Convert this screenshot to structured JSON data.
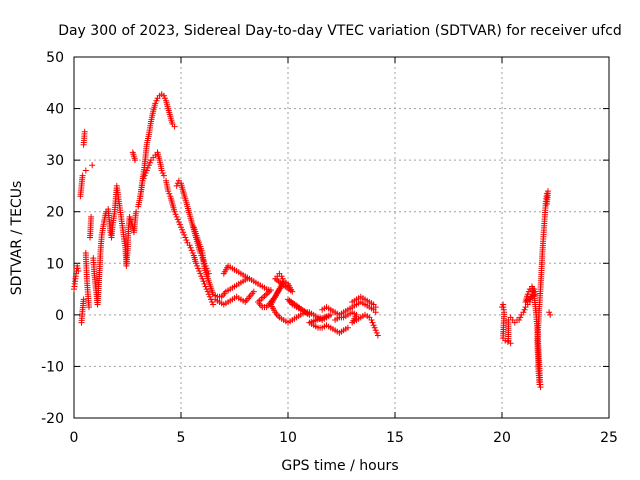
{
  "chart_data": {
    "type": "scatter",
    "title": "Day 300 of 2023, Sidereal Day-to-day VTEC variation (SDTVAR) for receiver ufcd",
    "xlabel": "GPS time / hours",
    "ylabel": "SDTVAR / TECUs",
    "xlim": [
      0,
      25
    ],
    "ylim": [
      -20,
      50
    ],
    "xticks": [
      0,
      5,
      10,
      15,
      20,
      25
    ],
    "yticks": [
      -20,
      -10,
      0,
      10,
      20,
      30,
      40,
      50
    ],
    "grid": true,
    "marker": "plus",
    "color": "#ff0000",
    "series": [
      {
        "name": "SDTVAR",
        "points": [
          [
            0.0,
            5.0
          ],
          [
            0.05,
            6.5
          ],
          [
            0.1,
            8.0
          ],
          [
            0.15,
            9.5
          ],
          [
            0.2,
            8.5
          ],
          [
            0.3,
            23.0
          ],
          [
            0.35,
            25.0
          ],
          [
            0.4,
            27.0
          ],
          [
            0.45,
            33.0
          ],
          [
            0.5,
            35.5
          ],
          [
            0.55,
            28.0
          ],
          [
            0.35,
            -1.5
          ],
          [
            0.4,
            1.0
          ],
          [
            0.45,
            3.0
          ],
          [
            0.55,
            12.0
          ],
          [
            0.6,
            7.0
          ],
          [
            0.65,
            4.0
          ],
          [
            0.7,
            1.5
          ],
          [
            0.75,
            15.0
          ],
          [
            0.8,
            19.0
          ],
          [
            0.85,
            29.0
          ],
          [
            0.9,
            11.0
          ],
          [
            0.95,
            8.0
          ],
          [
            1.0,
            6.0
          ],
          [
            1.05,
            4.0
          ],
          [
            1.1,
            2.0
          ],
          [
            1.15,
            5.5
          ],
          [
            1.2,
            9.0
          ],
          [
            1.25,
            13.0
          ],
          [
            1.3,
            15.5
          ],
          [
            1.4,
            18.0
          ],
          [
            1.5,
            20.0
          ],
          [
            1.6,
            20.5
          ],
          [
            1.7,
            16.0
          ],
          [
            1.75,
            15.0
          ],
          [
            1.8,
            17.0
          ],
          [
            1.9,
            20.0
          ],
          [
            2.0,
            25.0
          ],
          [
            2.1,
            22.0
          ],
          [
            2.2,
            19.0
          ],
          [
            2.3,
            16.0
          ],
          [
            2.4,
            13.0
          ],
          [
            2.45,
            9.5
          ],
          [
            2.5,
            12.0
          ],
          [
            2.55,
            17.0
          ],
          [
            2.6,
            19.0
          ],
          [
            2.7,
            18.0
          ],
          [
            2.8,
            16.0
          ],
          [
            2.9,
            20.0
          ],
          [
            2.75,
            31.5
          ],
          [
            2.85,
            30.0
          ],
          [
            3.0,
            21.0
          ],
          [
            3.1,
            23.0
          ],
          [
            3.2,
            26.0
          ],
          [
            3.3,
            27.0
          ],
          [
            3.4,
            28.0
          ],
          [
            3.5,
            29.0
          ],
          [
            3.6,
            30.0
          ],
          [
            3.7,
            30.5
          ],
          [
            3.8,
            31.0
          ],
          [
            3.9,
            31.5
          ],
          [
            4.0,
            30.0
          ],
          [
            4.1,
            28.0
          ],
          [
            4.2,
            27.0
          ],
          [
            3.1,
            23.0
          ],
          [
            3.2,
            26.0
          ],
          [
            3.3,
            29.0
          ],
          [
            3.4,
            33.0
          ],
          [
            3.5,
            35.0
          ],
          [
            3.6,
            37.5
          ],
          [
            3.7,
            39.5
          ],
          [
            3.8,
            41.0
          ],
          [
            3.9,
            42.0
          ],
          [
            4.0,
            42.5
          ],
          [
            4.1,
            42.8
          ],
          [
            4.2,
            42.5
          ],
          [
            4.3,
            41.5
          ],
          [
            4.4,
            40.0
          ],
          [
            4.5,
            38.5
          ],
          [
            4.6,
            37.0
          ],
          [
            4.7,
            36.5
          ],
          [
            4.3,
            26.0
          ],
          [
            4.4,
            24.0
          ],
          [
            4.5,
            23.0
          ],
          [
            4.6,
            21.5
          ],
          [
            4.7,
            20.0
          ],
          [
            4.8,
            19.0
          ],
          [
            4.9,
            18.0
          ],
          [
            5.0,
            17.0
          ],
          [
            5.1,
            16.0
          ],
          [
            5.2,
            15.0
          ],
          [
            5.3,
            14.0
          ],
          [
            5.4,
            13.5
          ],
          [
            5.5,
            12.5
          ],
          [
            5.6,
            11.5
          ],
          [
            5.7,
            10.0
          ],
          [
            5.8,
            9.0
          ],
          [
            5.9,
            8.0
          ],
          [
            6.0,
            7.0
          ],
          [
            6.1,
            6.0
          ],
          [
            6.2,
            5.0
          ],
          [
            6.3,
            4.0
          ],
          [
            6.4,
            3.0
          ],
          [
            6.5,
            2.0
          ],
          [
            4.8,
            25.0
          ],
          [
            4.9,
            26.0
          ],
          [
            5.0,
            25.5
          ],
          [
            5.1,
            24.0
          ],
          [
            5.2,
            22.5
          ],
          [
            5.3,
            21.0
          ],
          [
            5.4,
            19.5
          ],
          [
            5.5,
            18.0
          ],
          [
            5.6,
            16.5
          ],
          [
            5.7,
            15.0
          ],
          [
            5.8,
            13.5
          ],
          [
            5.9,
            12.0
          ],
          [
            6.0,
            11.0
          ],
          [
            6.1,
            10.0
          ],
          [
            6.2,
            9.0
          ],
          [
            6.3,
            8.0
          ],
          [
            5.6,
            17.0
          ],
          [
            5.8,
            14.5
          ],
          [
            6.0,
            12.0
          ],
          [
            6.1,
            9.0
          ],
          [
            6.5,
            4.0
          ],
          [
            6.7,
            3.5
          ],
          [
            6.9,
            3.5
          ],
          [
            7.1,
            4.5
          ],
          [
            7.3,
            5.0
          ],
          [
            7.5,
            5.5
          ],
          [
            7.7,
            6.0
          ],
          [
            7.9,
            6.5
          ],
          [
            8.1,
            7.0
          ],
          [
            6.6,
            3.0
          ],
          [
            6.8,
            2.5
          ],
          [
            7.0,
            2.0
          ],
          [
            7.2,
            2.5
          ],
          [
            7.4,
            3.0
          ],
          [
            7.6,
            3.5
          ],
          [
            7.8,
            3.0
          ],
          [
            8.0,
            2.5
          ],
          [
            8.2,
            3.5
          ],
          [
            8.4,
            4.5
          ],
          [
            7.0,
            8.0
          ],
          [
            7.2,
            9.5
          ],
          [
            7.4,
            9.0
          ],
          [
            7.6,
            8.5
          ],
          [
            7.8,
            8.0
          ],
          [
            8.0,
            7.5
          ],
          [
            8.2,
            7.0
          ],
          [
            8.4,
            6.5
          ],
          [
            8.6,
            6.0
          ],
          [
            8.8,
            5.5
          ],
          [
            9.0,
            5.0
          ],
          [
            9.2,
            4.8
          ],
          [
            8.6,
            2.5
          ],
          [
            8.8,
            1.5
          ],
          [
            9.0,
            1.5
          ],
          [
            9.2,
            2.5
          ],
          [
            9.4,
            3.5
          ],
          [
            9.6,
            5.0
          ],
          [
            9.8,
            6.5
          ],
          [
            10.0,
            6.0
          ],
          [
            10.2,
            4.5
          ],
          [
            9.4,
            7.0
          ],
          [
            9.5,
            7.5
          ],
          [
            9.6,
            8.0
          ],
          [
            9.7,
            7.5
          ],
          [
            9.8,
            6.5
          ],
          [
            9.2,
            2.0
          ],
          [
            9.4,
            0.5
          ],
          [
            9.6,
            -0.5
          ],
          [
            9.8,
            -1.0
          ],
          [
            10.0,
            -1.5
          ],
          [
            10.2,
            -1.0
          ],
          [
            10.4,
            -0.5
          ],
          [
            10.6,
            0.0
          ],
          [
            10.8,
            0.5
          ],
          [
            11.0,
            0.0
          ],
          [
            10.0,
            3.0
          ],
          [
            10.2,
            2.0
          ],
          [
            10.4,
            1.5
          ],
          [
            10.6,
            1.0
          ],
          [
            10.8,
            0.5
          ],
          [
            11.0,
            0.5
          ],
          [
            11.2,
            0.0
          ],
          [
            11.4,
            -0.5
          ],
          [
            11.6,
            -1.0
          ],
          [
            11.8,
            -0.5
          ],
          [
            12.0,
            0.0
          ],
          [
            11.0,
            -1.5
          ],
          [
            11.2,
            -2.0
          ],
          [
            11.4,
            -2.5
          ],
          [
            11.6,
            -2.5
          ],
          [
            11.8,
            -2.0
          ],
          [
            12.0,
            -2.5
          ],
          [
            12.2,
            -3.0
          ],
          [
            12.4,
            -3.5
          ],
          [
            12.6,
            -3.0
          ],
          [
            12.8,
            -2.5
          ],
          [
            11.6,
            1.0
          ],
          [
            11.8,
            1.5
          ],
          [
            12.0,
            1.0
          ],
          [
            12.2,
            0.5
          ],
          [
            12.4,
            0.0
          ],
          [
            12.6,
            0.5
          ],
          [
            12.8,
            1.0
          ],
          [
            13.0,
            1.5
          ],
          [
            13.2,
            2.0
          ],
          [
            13.4,
            2.5
          ],
          [
            13.6,
            2.0
          ],
          [
            13.8,
            1.5
          ],
          [
            14.0,
            1.0
          ],
          [
            14.1,
            0.5
          ],
          [
            12.2,
            -1.0
          ],
          [
            12.4,
            -0.5
          ],
          [
            12.6,
            -0.5
          ],
          [
            12.8,
            0.0
          ],
          [
            13.0,
            0.5
          ],
          [
            13.2,
            0.0
          ],
          [
            13.0,
            -1.5
          ],
          [
            13.2,
            -1.0
          ],
          [
            13.4,
            -0.5
          ],
          [
            13.6,
            0.0
          ],
          [
            13.8,
            -0.5
          ],
          [
            13.9,
            -1.0
          ],
          [
            14.0,
            -2.0
          ],
          [
            14.1,
            -3.0
          ],
          [
            14.2,
            -4.0
          ],
          [
            13.0,
            2.5
          ],
          [
            13.2,
            3.0
          ],
          [
            13.4,
            3.5
          ],
          [
            13.6,
            3.0
          ],
          [
            13.8,
            2.5
          ],
          [
            14.0,
            2.0
          ],
          [
            14.1,
            1.5
          ],
          [
            20.0,
            1.5
          ],
          [
            20.05,
            2.0
          ],
          [
            20.1,
            0.5
          ],
          [
            20.05,
            -4.5
          ],
          [
            20.15,
            -5.0
          ],
          [
            20.4,
            -5.5
          ],
          [
            20.3,
            -5.0
          ],
          [
            20.3,
            -1.0
          ],
          [
            20.4,
            -0.5
          ],
          [
            20.5,
            -1.0
          ],
          [
            20.6,
            -1.5
          ],
          [
            20.7,
            -1.0
          ],
          [
            20.8,
            -1.0
          ],
          [
            20.9,
            0.0
          ],
          [
            21.0,
            0.5
          ],
          [
            21.1,
            1.5
          ],
          [
            21.2,
            2.0
          ],
          [
            21.3,
            2.5
          ],
          [
            21.35,
            3.5
          ],
          [
            21.4,
            4.0
          ],
          [
            21.45,
            4.5
          ],
          [
            21.5,
            5.0
          ],
          [
            21.55,
            4.0
          ],
          [
            21.1,
            2.5
          ],
          [
            21.2,
            4.0
          ],
          [
            21.3,
            5.0
          ],
          [
            21.4,
            5.5
          ],
          [
            21.5,
            4.0
          ],
          [
            21.55,
            2.0
          ],
          [
            21.6,
            0.0
          ],
          [
            21.65,
            -3.0
          ],
          [
            21.7,
            -6.0
          ],
          [
            21.72,
            -8.0
          ],
          [
            21.75,
            -10.0
          ],
          [
            21.78,
            -13.0
          ],
          [
            21.8,
            -14.0
          ],
          [
            21.75,
            -13.5
          ],
          [
            21.7,
            -10.5
          ],
          [
            21.65,
            -5.0
          ],
          [
            21.7,
            -2.0
          ],
          [
            21.75,
            2.0
          ],
          [
            21.8,
            5.0
          ],
          [
            21.85,
            9.0
          ],
          [
            21.9,
            13.0
          ],
          [
            21.95,
            16.0
          ],
          [
            22.0,
            19.0
          ],
          [
            22.05,
            22.0
          ],
          [
            22.1,
            23.5
          ],
          [
            22.15,
            24.0
          ],
          [
            22.1,
            21.5
          ],
          [
            22.2,
            0.5
          ],
          [
            22.25,
            0.0
          ]
        ]
      }
    ]
  }
}
